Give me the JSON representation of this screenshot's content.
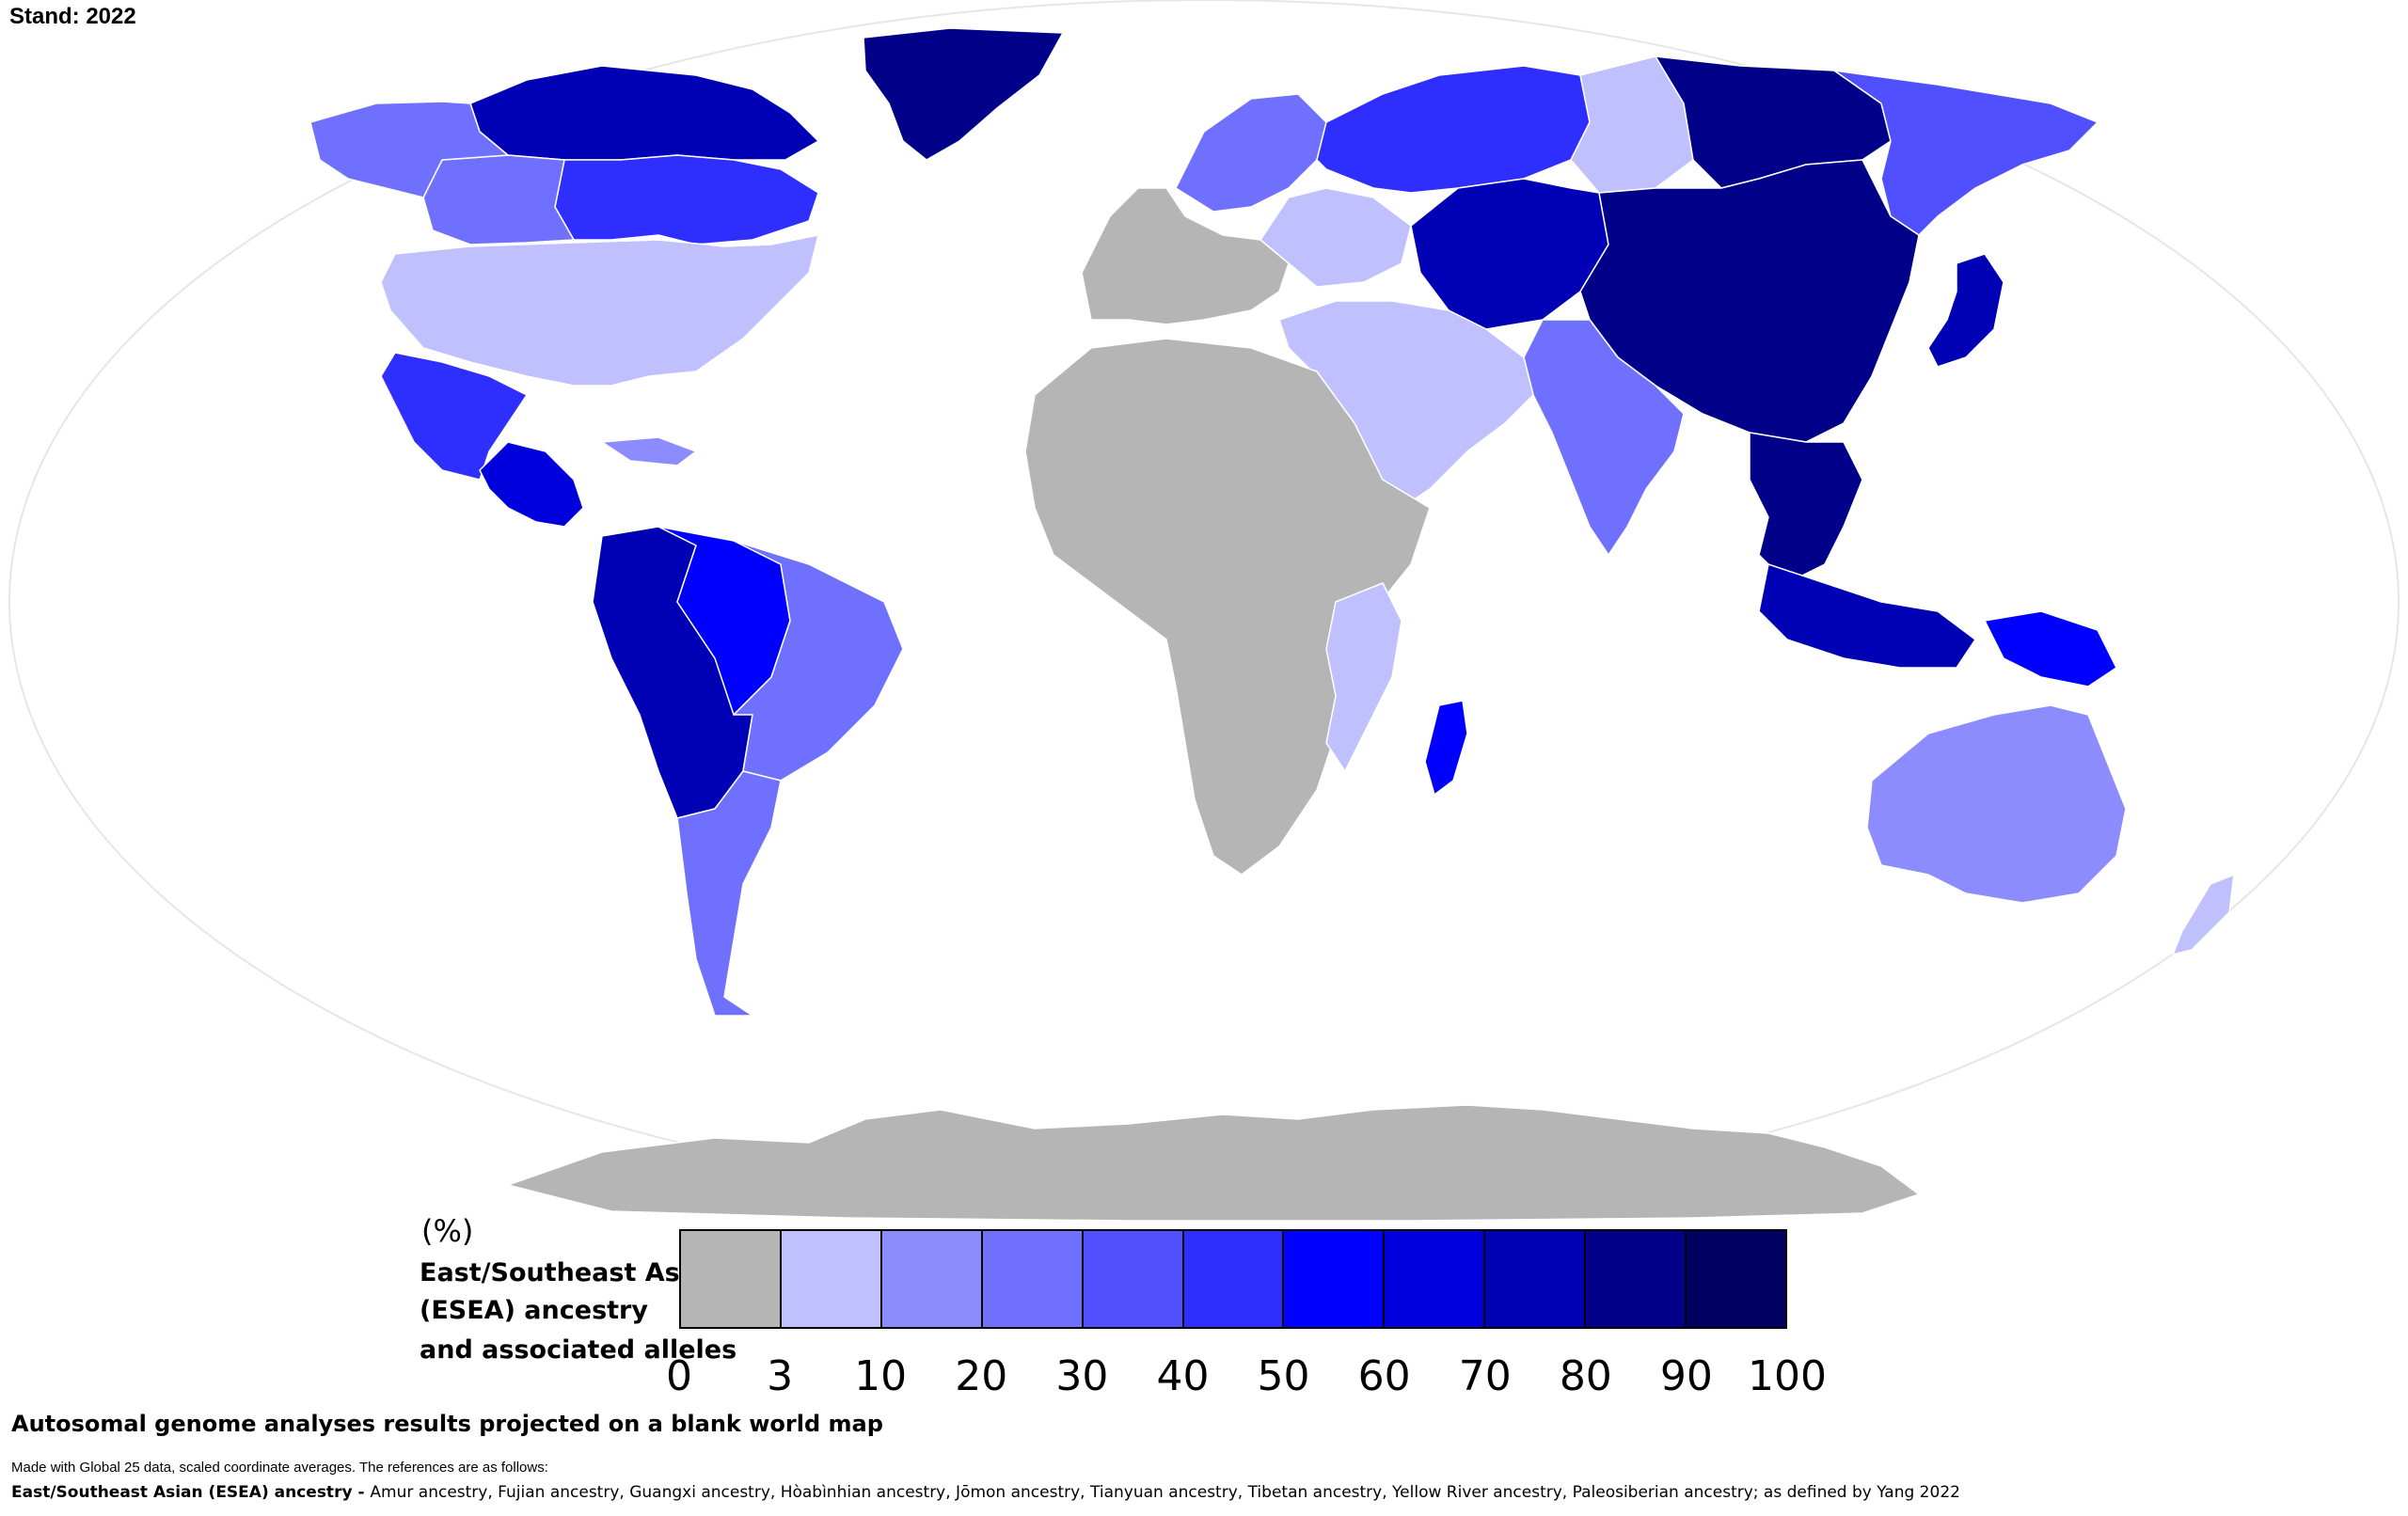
{
  "header": {
    "stand": "Stand: 2022"
  },
  "legend": {
    "unit": "(%)",
    "title_lines": [
      "East/Southeast Asian",
      "(ESEA) ancestry",
      "and associated alleles"
    ],
    "ticks": [
      "0",
      "3",
      "10",
      "20",
      "30",
      "40",
      "50",
      "60",
      "70",
      "80",
      "90",
      "100"
    ],
    "colors": [
      "#b5b5b5",
      "#c0c0ff",
      "#8c8cff",
      "#7070ff",
      "#5050ff",
      "#2e2eff",
      "#0000ff",
      "#0000dd",
      "#0000b4",
      "#000089",
      "#000060"
    ]
  },
  "footer": {
    "caption": "Autosomal genome analyses results projected on a blank world map",
    "made_with": "Made with Global 25 data, scaled coordinate averages. The references are as follows:",
    "refs_label": "East/Southeast Asian (ESEA) ancestry - ",
    "refs_text": " Amur ancestry, Fujian ancestry, Guangxi ancestry, Hòabìnhian ancestry, Jōmon ancestry, Tianyuan ancestry, Tibetan ancestry, Yellow River ancestry, Paleosiberian ancestry; as defined by Yang 2022"
  },
  "regions": [
    {
      "id": "greenland",
      "level": 9
    },
    {
      "id": "canada-north",
      "level": 8
    },
    {
      "id": "canada-central",
      "level": 5
    },
    {
      "id": "canada-west",
      "level": 3
    },
    {
      "id": "alaska",
      "level": 3
    },
    {
      "id": "usa",
      "level": 1
    },
    {
      "id": "mexico",
      "level": 5
    },
    {
      "id": "central-america",
      "level": 7
    },
    {
      "id": "caribbean",
      "level": 2
    },
    {
      "id": "south-america-andes",
      "level": 8
    },
    {
      "id": "brazil-west",
      "level": 6
    },
    {
      "id": "brazil-east",
      "level": 3
    },
    {
      "id": "southern-cone",
      "level": 3
    },
    {
      "id": "europe",
      "level": 0
    },
    {
      "id": "scandinavia",
      "level": 3
    },
    {
      "id": "eastern-europe",
      "level": 1
    },
    {
      "id": "russia-west",
      "level": 5
    },
    {
      "id": "russia-central",
      "level": 1
    },
    {
      "id": "siberia-east",
      "level": 9
    },
    {
      "id": "russia-far-east",
      "level": 4
    },
    {
      "id": "central-asia",
      "level": 8
    },
    {
      "id": "china-mongolia",
      "level": 9
    },
    {
      "id": "japan",
      "level": 8
    },
    {
      "id": "southeast-asia",
      "level": 9
    },
    {
      "id": "indonesia",
      "level": 8
    },
    {
      "id": "new-guinea",
      "level": 6
    },
    {
      "id": "india",
      "level": 3
    },
    {
      "id": "middle-east",
      "level": 1
    },
    {
      "id": "africa",
      "level": 0
    },
    {
      "id": "east-africa",
      "level": 1
    },
    {
      "id": "madagascar",
      "level": 6
    },
    {
      "id": "australia",
      "level": 2
    },
    {
      "id": "new-zealand",
      "level": 1
    },
    {
      "id": "antarctica",
      "level": 0
    }
  ]
}
